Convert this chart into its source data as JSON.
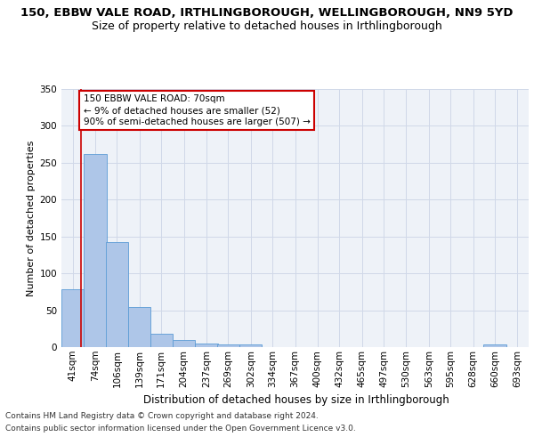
{
  "title1": "150, EBBW VALE ROAD, IRTHLINGBOROUGH, WELLINGBOROUGH, NN9 5YD",
  "title2": "Size of property relative to detached houses in Irthlingborough",
  "xlabel": "Distribution of detached houses by size in Irthlingborough",
  "ylabel": "Number of detached properties",
  "footer1": "Contains HM Land Registry data © Crown copyright and database right 2024.",
  "footer2": "Contains public sector information licensed under the Open Government Licence v3.0.",
  "bar_edges": [
    41,
    74,
    106,
    139,
    171,
    204,
    237,
    269,
    302,
    334,
    367,
    400,
    432,
    465,
    497,
    530,
    563,
    595,
    628,
    660,
    693
  ],
  "bar_heights": [
    78,
    262,
    143,
    54,
    18,
    10,
    5,
    4,
    4,
    0,
    0,
    0,
    0,
    0,
    0,
    0,
    0,
    0,
    0,
    4,
    0
  ],
  "bar_color": "#aec6e8",
  "bar_edge_color": "#5b9bd5",
  "grid_color": "#d0d8e8",
  "background_color": "#eef2f8",
  "annotation_line1": "150 EBBW VALE ROAD: 70sqm",
  "annotation_line2": "← 9% of detached houses are smaller (52)",
  "annotation_line3": "90% of semi-detached houses are larger (507) →",
  "annotation_box_color": "#ffffff",
  "annotation_box_edge": "#cc0000",
  "vline_x": 70,
  "vline_color": "#cc0000",
  "ylim": [
    0,
    350
  ],
  "yticks": [
    0,
    50,
    100,
    150,
    200,
    250,
    300,
    350
  ],
  "title1_fontsize": 9.5,
  "title2_fontsize": 9,
  "xlabel_fontsize": 8.5,
  "ylabel_fontsize": 8,
  "tick_fontsize": 7.5,
  "annotation_fontsize": 7.5,
  "footer_fontsize": 6.5
}
